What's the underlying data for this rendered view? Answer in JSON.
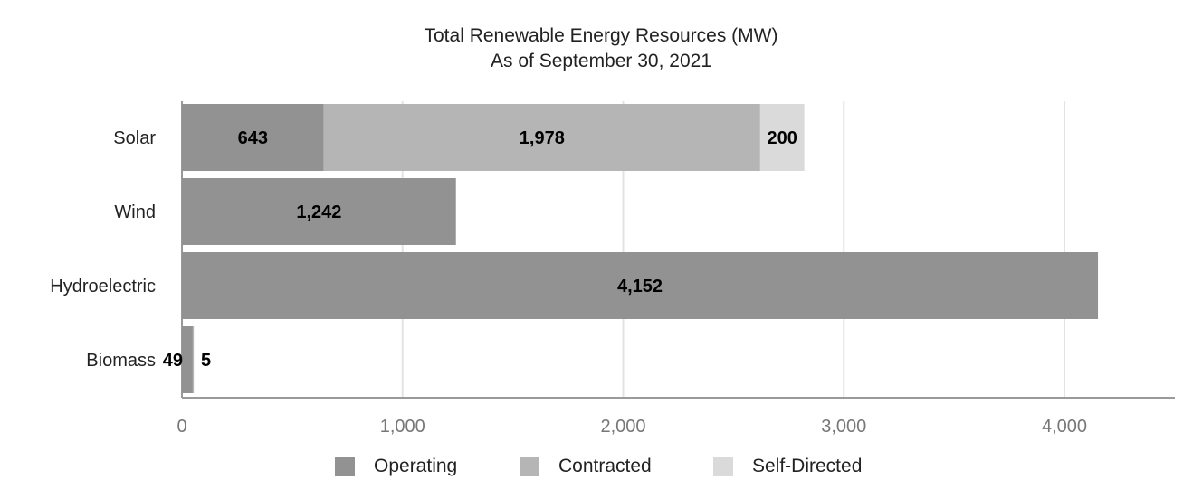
{
  "title": "Total Renewable Energy Resources (MW)",
  "subtitle": "As of September 30, 2021",
  "chart_data": {
    "type": "bar",
    "orientation": "horizontal",
    "stacked": true,
    "categories": [
      "Solar",
      "Wind",
      "Hydroelectric",
      "Biomass"
    ],
    "series": [
      {
        "name": "Operating",
        "values": [
          643,
          1242,
          4152,
          49
        ],
        "labels": [
          "643",
          "1,242",
          "4,152",
          "49"
        ],
        "color": "#929292"
      },
      {
        "name": "Contracted",
        "values": [
          1978,
          0,
          0,
          5
        ],
        "labels": [
          "1,978",
          "",
          "",
          "5"
        ],
        "color": "#b5b5b5"
      },
      {
        "name": "Self-Directed",
        "values": [
          200,
          0,
          0,
          0
        ],
        "labels": [
          "200",
          "",
          "",
          ""
        ],
        "color": "#dadada"
      }
    ],
    "xlim": [
      0,
      4500
    ],
    "xticks": [
      0,
      1000,
      2000,
      3000,
      4000
    ],
    "xtick_labels": [
      "0",
      "1,000",
      "2,000",
      "3,000",
      "4,000"
    ],
    "grid": true,
    "legend_position": "bottom"
  }
}
